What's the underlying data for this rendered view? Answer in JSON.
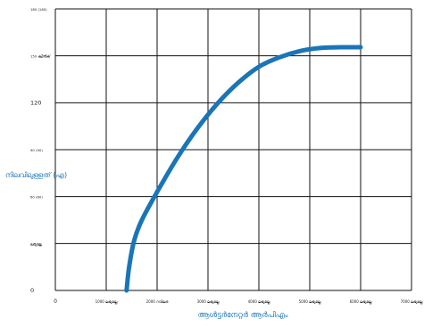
{
  "colors": {
    "curve": "#1a75b8",
    "grid": "#111111",
    "axis_label": "#1a75b8",
    "background": "#ffffff"
  },
  "chart_data": {
    "type": "line",
    "title": "",
    "xlabel": "ആൾട്ടർനേറ്റർ ആർപിഎം",
    "ylabel": "നിലവിലുള്ളത് (എ)",
    "xlim": [
      0,
      7000
    ],
    "ylim": [
      0,
      180
    ],
    "grid": true,
    "x_tick_values": [
      0,
      1000,
      2000,
      3000,
      4000,
      5000,
      6000,
      7000
    ],
    "x_tick_labels": [
      "0",
      "1000 ലഭ്യമല്ല",
      "2000 റവിലര",
      "3000 ലഭ്യമല്ല",
      "4000 ലഭ്യമല്ല",
      "5000 ലഭ്യമല്ല",
      "6000 ലഭ്യമല്ല",
      "7000 ലഭ്യമല്ല"
    ],
    "y_tick_values": [
      0,
      30,
      60,
      90,
      120,
      150,
      180
    ],
    "y_tick_labels": [
      "0",
      "ലഭ്യമല്ല",
      "60 (60)",
      "90 (90)",
      "120",
      "150 ക്വിൽക്",
      "180 (180)"
    ],
    "series": [
      {
        "x": [
          1400,
          1450,
          1550,
          1700,
          2000,
          2400,
          2800,
          3200,
          3600,
          4000,
          4400,
          4800,
          5200,
          5600,
          6000
        ],
        "y": [
          0,
          15,
          32,
          45,
          63,
          85,
          104,
          120,
          133,
          143,
          149,
          153,
          155,
          155.5,
          155.5
        ]
      }
    ]
  }
}
